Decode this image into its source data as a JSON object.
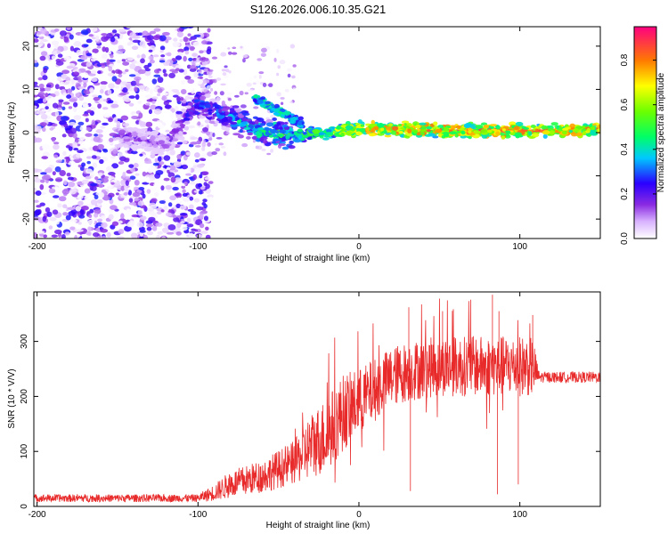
{
  "chart_data": [
    {
      "type": "heatmap",
      "title": "S126.2026.006.10.35.G21",
      "xlabel": "Height of straight line (km)",
      "ylabel": "Frequency (Hz)",
      "xlim": [
        -202,
        150
      ],
      "ylim": [
        -24.5,
        24.5
      ],
      "xticks": [
        -200,
        -100,
        0,
        100
      ],
      "yticks": [
        -20,
        -10,
        0,
        10,
        20
      ],
      "xtick_labels": [
        "-200",
        "-100",
        "0",
        "100"
      ],
      "ytick_labels": [
        "-20",
        "-10",
        "0",
        "10",
        "20"
      ],
      "colorbar": {
        "label": "Normalized spectral amplitude",
        "range": [
          0,
          0.95
        ],
        "ticks": [
          0,
          0.2,
          0.4,
          0.6,
          0.8
        ],
        "tick_labels": [
          "0.0",
          "0.2",
          "0.4",
          "0.6",
          "0.8"
        ]
      },
      "ridge": {
        "description_points_x": [
          -150,
          -120,
          -100,
          -85,
          -70,
          -60,
          -50,
          -40,
          -30,
          -20,
          0,
          50,
          100,
          150
        ],
        "description_points_y": [
          0,
          -3,
          7,
          4,
          2,
          0,
          0,
          -1,
          0,
          0,
          1,
          0.5,
          0.3,
          0.7
        ],
        "values": [
          0.2,
          0.15,
          0.3,
          0.35,
          0.4,
          0.45,
          0.5,
          0.45,
          0.5,
          0.55,
          0.7,
          0.75,
          0.75,
          0.7
        ]
      },
      "branch": {
        "x": [
          -65,
          -55,
          -45,
          -35
        ],
        "y": [
          8,
          6,
          4,
          2
        ],
        "values": [
          0.4,
          0.45,
          0.4,
          0.35
        ]
      }
    },
    {
      "type": "line",
      "xlabel": "Height of straight line (km)",
      "ylabel": "SNR (10 * V/V)",
      "xlim": [
        -202,
        150
      ],
      "ylim": [
        0,
        390
      ],
      "xticks": [
        -200,
        -100,
        0,
        100
      ],
      "yticks": [
        0,
        100,
        200,
        300
      ],
      "xtick_labels": [
        "-200",
        "-100",
        "0",
        "100"
      ],
      "ytick_labels": [
        "0",
        "100",
        "200",
        "300"
      ],
      "series": [
        {
          "name": "SNR",
          "color": "#e82a2a",
          "envelope_x": [
            -202,
            -100,
            -90,
            -80,
            -60,
            -40,
            -30,
            -20,
            -10,
            0,
            20,
            30,
            50,
            80,
            108,
            112,
            150
          ],
          "envelope_mean": [
            15,
            15,
            25,
            40,
            55,
            80,
            110,
            130,
            170,
            190,
            235,
            245,
            255,
            255,
            255,
            235,
            235
          ],
          "envelope_noise": [
            7,
            7,
            15,
            25,
            30,
            40,
            60,
            70,
            70,
            60,
            55,
            55,
            55,
            55,
            55,
            10,
            10
          ],
          "spikes": [
            {
              "x": 83,
              "y": 385
            },
            {
              "x": 31,
              "y": 362
            },
            {
              "x": 52,
              "y": 355
            },
            {
              "x": 108,
              "y": 348
            },
            {
              "x": 87,
              "y": 355
            },
            {
              "x": 32,
              "y": 28
            },
            {
              "x": 86,
              "y": 22
            },
            {
              "x": 99,
              "y": 40
            },
            {
              "x": -20,
              "y": 90
            }
          ]
        }
      ]
    }
  ]
}
